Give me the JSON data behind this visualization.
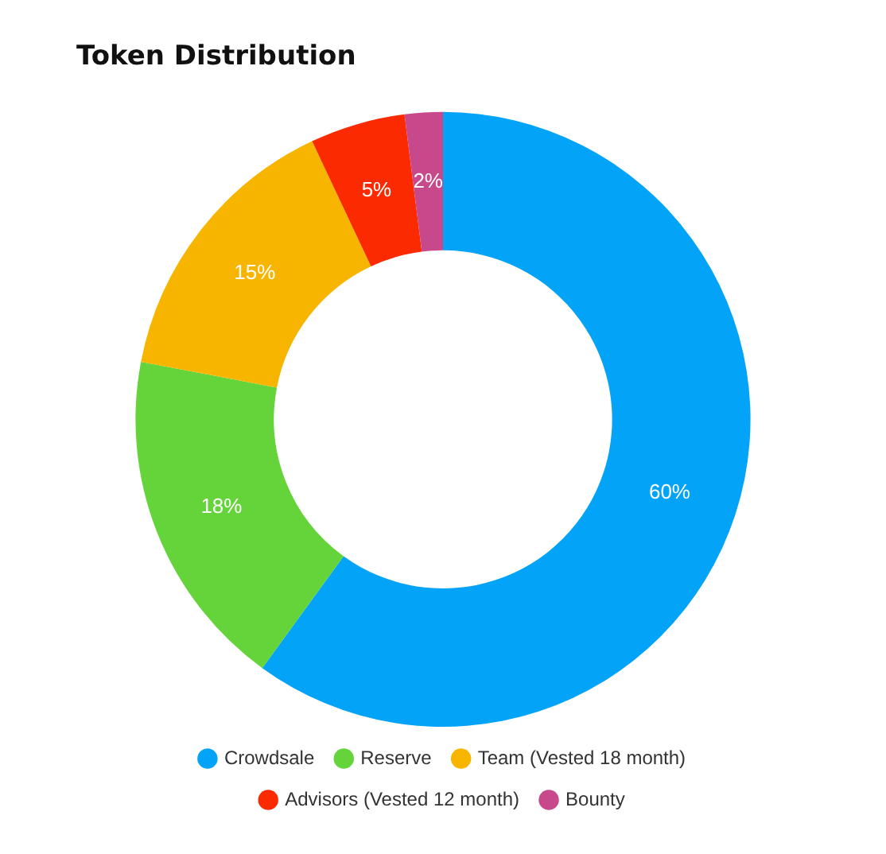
{
  "chart_data": {
    "type": "donut",
    "title": "Token Distribution",
    "categories": [
      "Crowdsale",
      "Reserve",
      "Team (Vested 18 month)",
      "Advisors (Vested 12 month)",
      "Bounty"
    ],
    "values": [
      60,
      18,
      15,
      5,
      2
    ],
    "colors": [
      "#03a3f7",
      "#64d43a",
      "#f7b500",
      "#fb2a00",
      "#c8498b"
    ],
    "value_labels": [
      "60%",
      "18%",
      "15%",
      "5%",
      "2%"
    ],
    "legend": "bottom"
  }
}
